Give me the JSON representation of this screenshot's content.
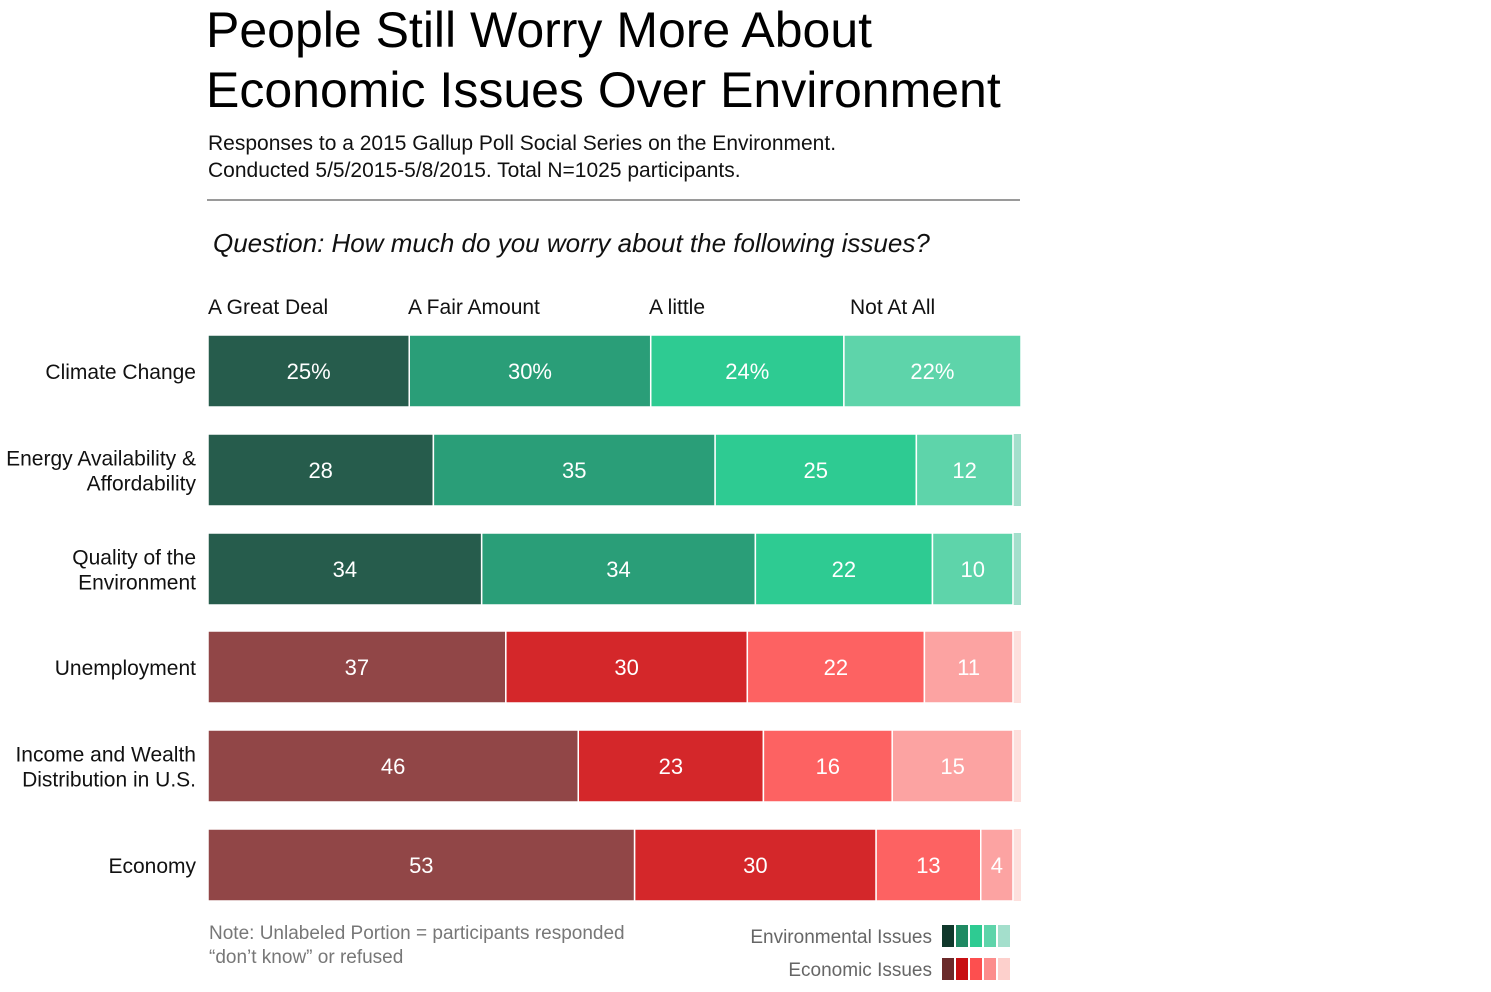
{
  "title_line1": "People Still Worry More About",
  "title_line2": "Economic Issues Over Environment",
  "subtitle_line1": "Responses to a 2015 Gallup Poll Social Series on the Environment.",
  "subtitle_line2": "Conducted 5/5/2015-5/8/2015. Total N=1025 participants.",
  "question": "Question: How much do you worry about the following issues?",
  "note_line1": "Note: Unlabeled Portion = participants responded",
  "note_line2": "“don’t know” or refused",
  "colors": {
    "environmental": [
      "#265c4c",
      "#2a9e78",
      "#2ecb92",
      "#5ed4aa",
      "#a4dfcc"
    ],
    "economic": [
      "#914647",
      "#d4272a",
      "#fd6262",
      "#fca3a2",
      "#fde0dd"
    ],
    "legend_environmental": [
      "#10382b",
      "#1f8a63",
      "#2ecb92",
      "#5ed4aa",
      "#a4dfcc"
    ],
    "legend_economic": [
      "#6b2a2a",
      "#c80f12",
      "#fd4f4f",
      "#fc8d8c",
      "#fdd0cc"
    ]
  },
  "legend": {
    "environmental_label": "Environmental Issues",
    "economic_label": "Economic Issues"
  },
  "chart_data": {
    "type": "bar",
    "orientation": "horizontal",
    "stacked": true,
    "title": "People Still Worry More About Economic Issues Over Environment",
    "categories_series": [
      "A Great Deal",
      "A Fair Amount",
      "A little",
      "Not At All"
    ],
    "xlim": [
      0,
      101
    ],
    "rows": [
      {
        "label": [
          "Climate Change"
        ],
        "group": "environmental",
        "values": [
          25,
          30,
          24,
          22
        ],
        "labels": [
          "25%",
          "30%",
          "24%",
          "22%"
        ]
      },
      {
        "label": [
          "Energy Availability &",
          "Affordability"
        ],
        "group": "environmental",
        "values": [
          28,
          35,
          25,
          12
        ],
        "labels": [
          "28",
          "35",
          "25",
          "12"
        ]
      },
      {
        "label": [
          "Quality of the",
          "Environment"
        ],
        "group": "environmental",
        "values": [
          34,
          34,
          22,
          10
        ],
        "labels": [
          "34",
          "34",
          "22",
          "10"
        ]
      },
      {
        "label": [
          "Unemployment"
        ],
        "group": "economic",
        "values": [
          37,
          30,
          22,
          11
        ],
        "labels": [
          "37",
          "30",
          "22",
          "11"
        ]
      },
      {
        "label": [
          "Income and Wealth",
          "Distribution in U.S."
        ],
        "group": "economic",
        "values": [
          46,
          23,
          16,
          15
        ],
        "labels": [
          "46",
          "23",
          "16",
          "15"
        ]
      },
      {
        "label": [
          "Economy"
        ],
        "group": "economic",
        "values": [
          53,
          30,
          13,
          4
        ],
        "labels": [
          "53",
          "30",
          "13",
          "4"
        ]
      }
    ]
  }
}
